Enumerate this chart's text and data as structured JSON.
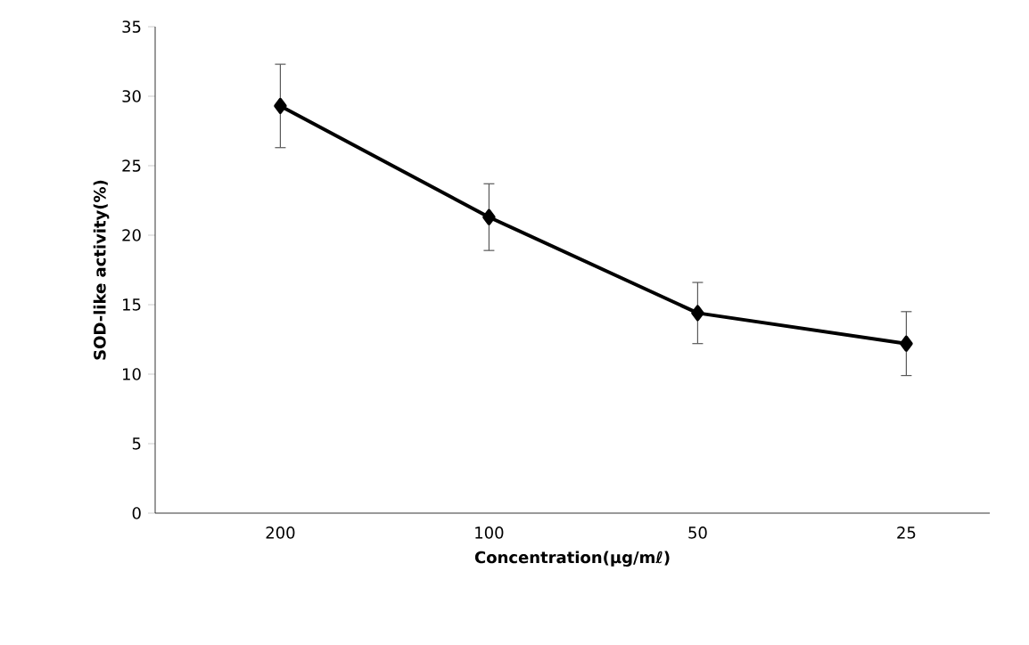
{
  "chart_data": {
    "type": "line",
    "xlabel": "Concentration(μg/mℓ)",
    "ylabel": "SOD-like activity(%)",
    "categories": [
      "200",
      "100",
      "50",
      "25"
    ],
    "series": [
      {
        "color": "#000000",
        "values": [
          29.3,
          21.3,
          14.4,
          12.2
        ],
        "errors": [
          3.0,
          2.4,
          2.2,
          2.3
        ]
      }
    ],
    "ylim": [
      0,
      35
    ],
    "yticks": [
      0,
      5,
      10,
      15,
      20,
      25,
      30,
      35
    ],
    "grid": false,
    "marker": "diamond",
    "line_style": "solid"
  }
}
